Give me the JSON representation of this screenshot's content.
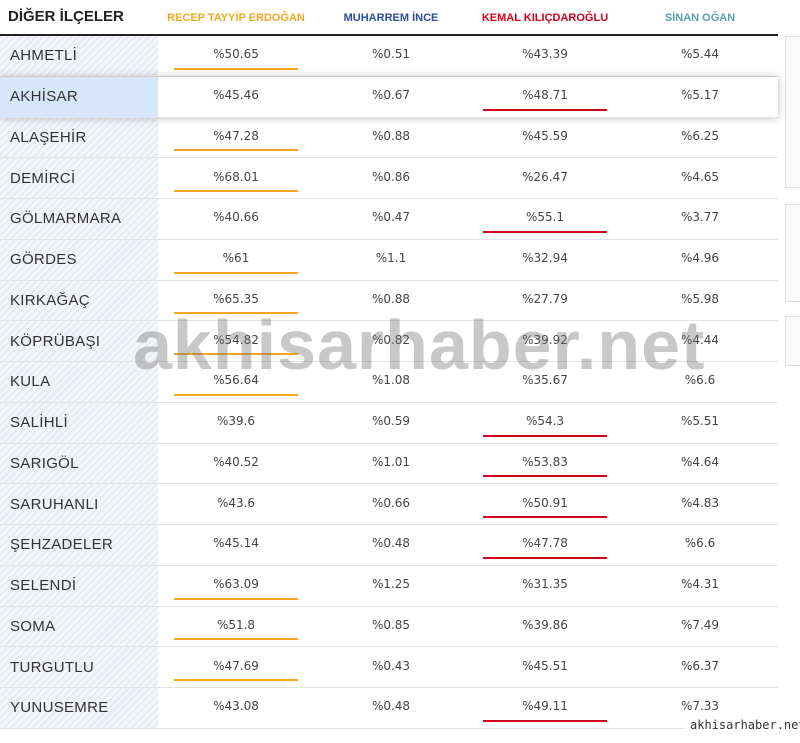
{
  "header": {
    "title": "DİĞER İLÇELER",
    "candidates": [
      {
        "name": "RECEP TAYYİP ERDOĞAN",
        "color": "#f5a623"
      },
      {
        "name": "MUHARREM İNCE",
        "color": "#2d4d9c"
      },
      {
        "name": "KEMAL KILIÇDAROĞLU",
        "color": "#d0021b"
      },
      {
        "name": "SİNAN OĞAN",
        "color": "#5a9db3"
      }
    ]
  },
  "selected_row": 1,
  "table": {
    "rows": [
      [
        "AHMETLİ",
        "%50.65",
        "%0.51",
        "%43.39",
        "%5.44"
      ],
      [
        "AKHİSAR",
        "%45.46",
        "%0.67",
        "%48.71",
        "%5.17"
      ],
      [
        "ALAŞEHİR",
        "%47.28",
        "%0.88",
        "%45.59",
        "%6.25"
      ],
      [
        "DEMİRCİ",
        "%68.01",
        "%0.86",
        "%26.47",
        "%4.65"
      ],
      [
        "GÖLMARMARA",
        "%40.66",
        "%0.47",
        "%55.1",
        "%3.77"
      ],
      [
        "GÖRDES",
        "%61",
        "%1.1",
        "%32.94",
        "%4.96"
      ],
      [
        "KIRKAĞAÇ",
        "%65.35",
        "%0.88",
        "%27.79",
        "%5.98"
      ],
      [
        "KÖPRÜBAŞI",
        "%54.82",
        "%0.82",
        "%39.92",
        "%4.44"
      ],
      [
        "KULA",
        "%56.64",
        "%1.08",
        "%35.67",
        "%6.6"
      ],
      [
        "SALİHLİ",
        "%39.6",
        "%0.59",
        "%54.3",
        "%5.51"
      ],
      [
        "SARIGÖL",
        "%40.52",
        "%1.01",
        "%53.83",
        "%4.64"
      ],
      [
        "SARUHANLI",
        "%43.6",
        "%0.66",
        "%50.91",
        "%4.83"
      ],
      [
        "ŞEHZADELER",
        "%45.14",
        "%0.48",
        "%47.78",
        "%6.6"
      ],
      [
        "SELENDİ",
        "%63.09",
        "%1.25",
        "%31.35",
        "%4.31"
      ],
      [
        "SOMA",
        "%51.8",
        "%0.85",
        "%39.86",
        "%7.49"
      ],
      [
        "TURGUTLU",
        "%47.69",
        "%0.43",
        "%45.51",
        "%6.37"
      ],
      [
        "YUNUSEMRE",
        "%43.08",
        "%0.48",
        "%49.11",
        "%7.33"
      ]
    ]
  },
  "watermark": "akhisarhaber.net",
  "footer_label": "akhisarhaber.net"
}
